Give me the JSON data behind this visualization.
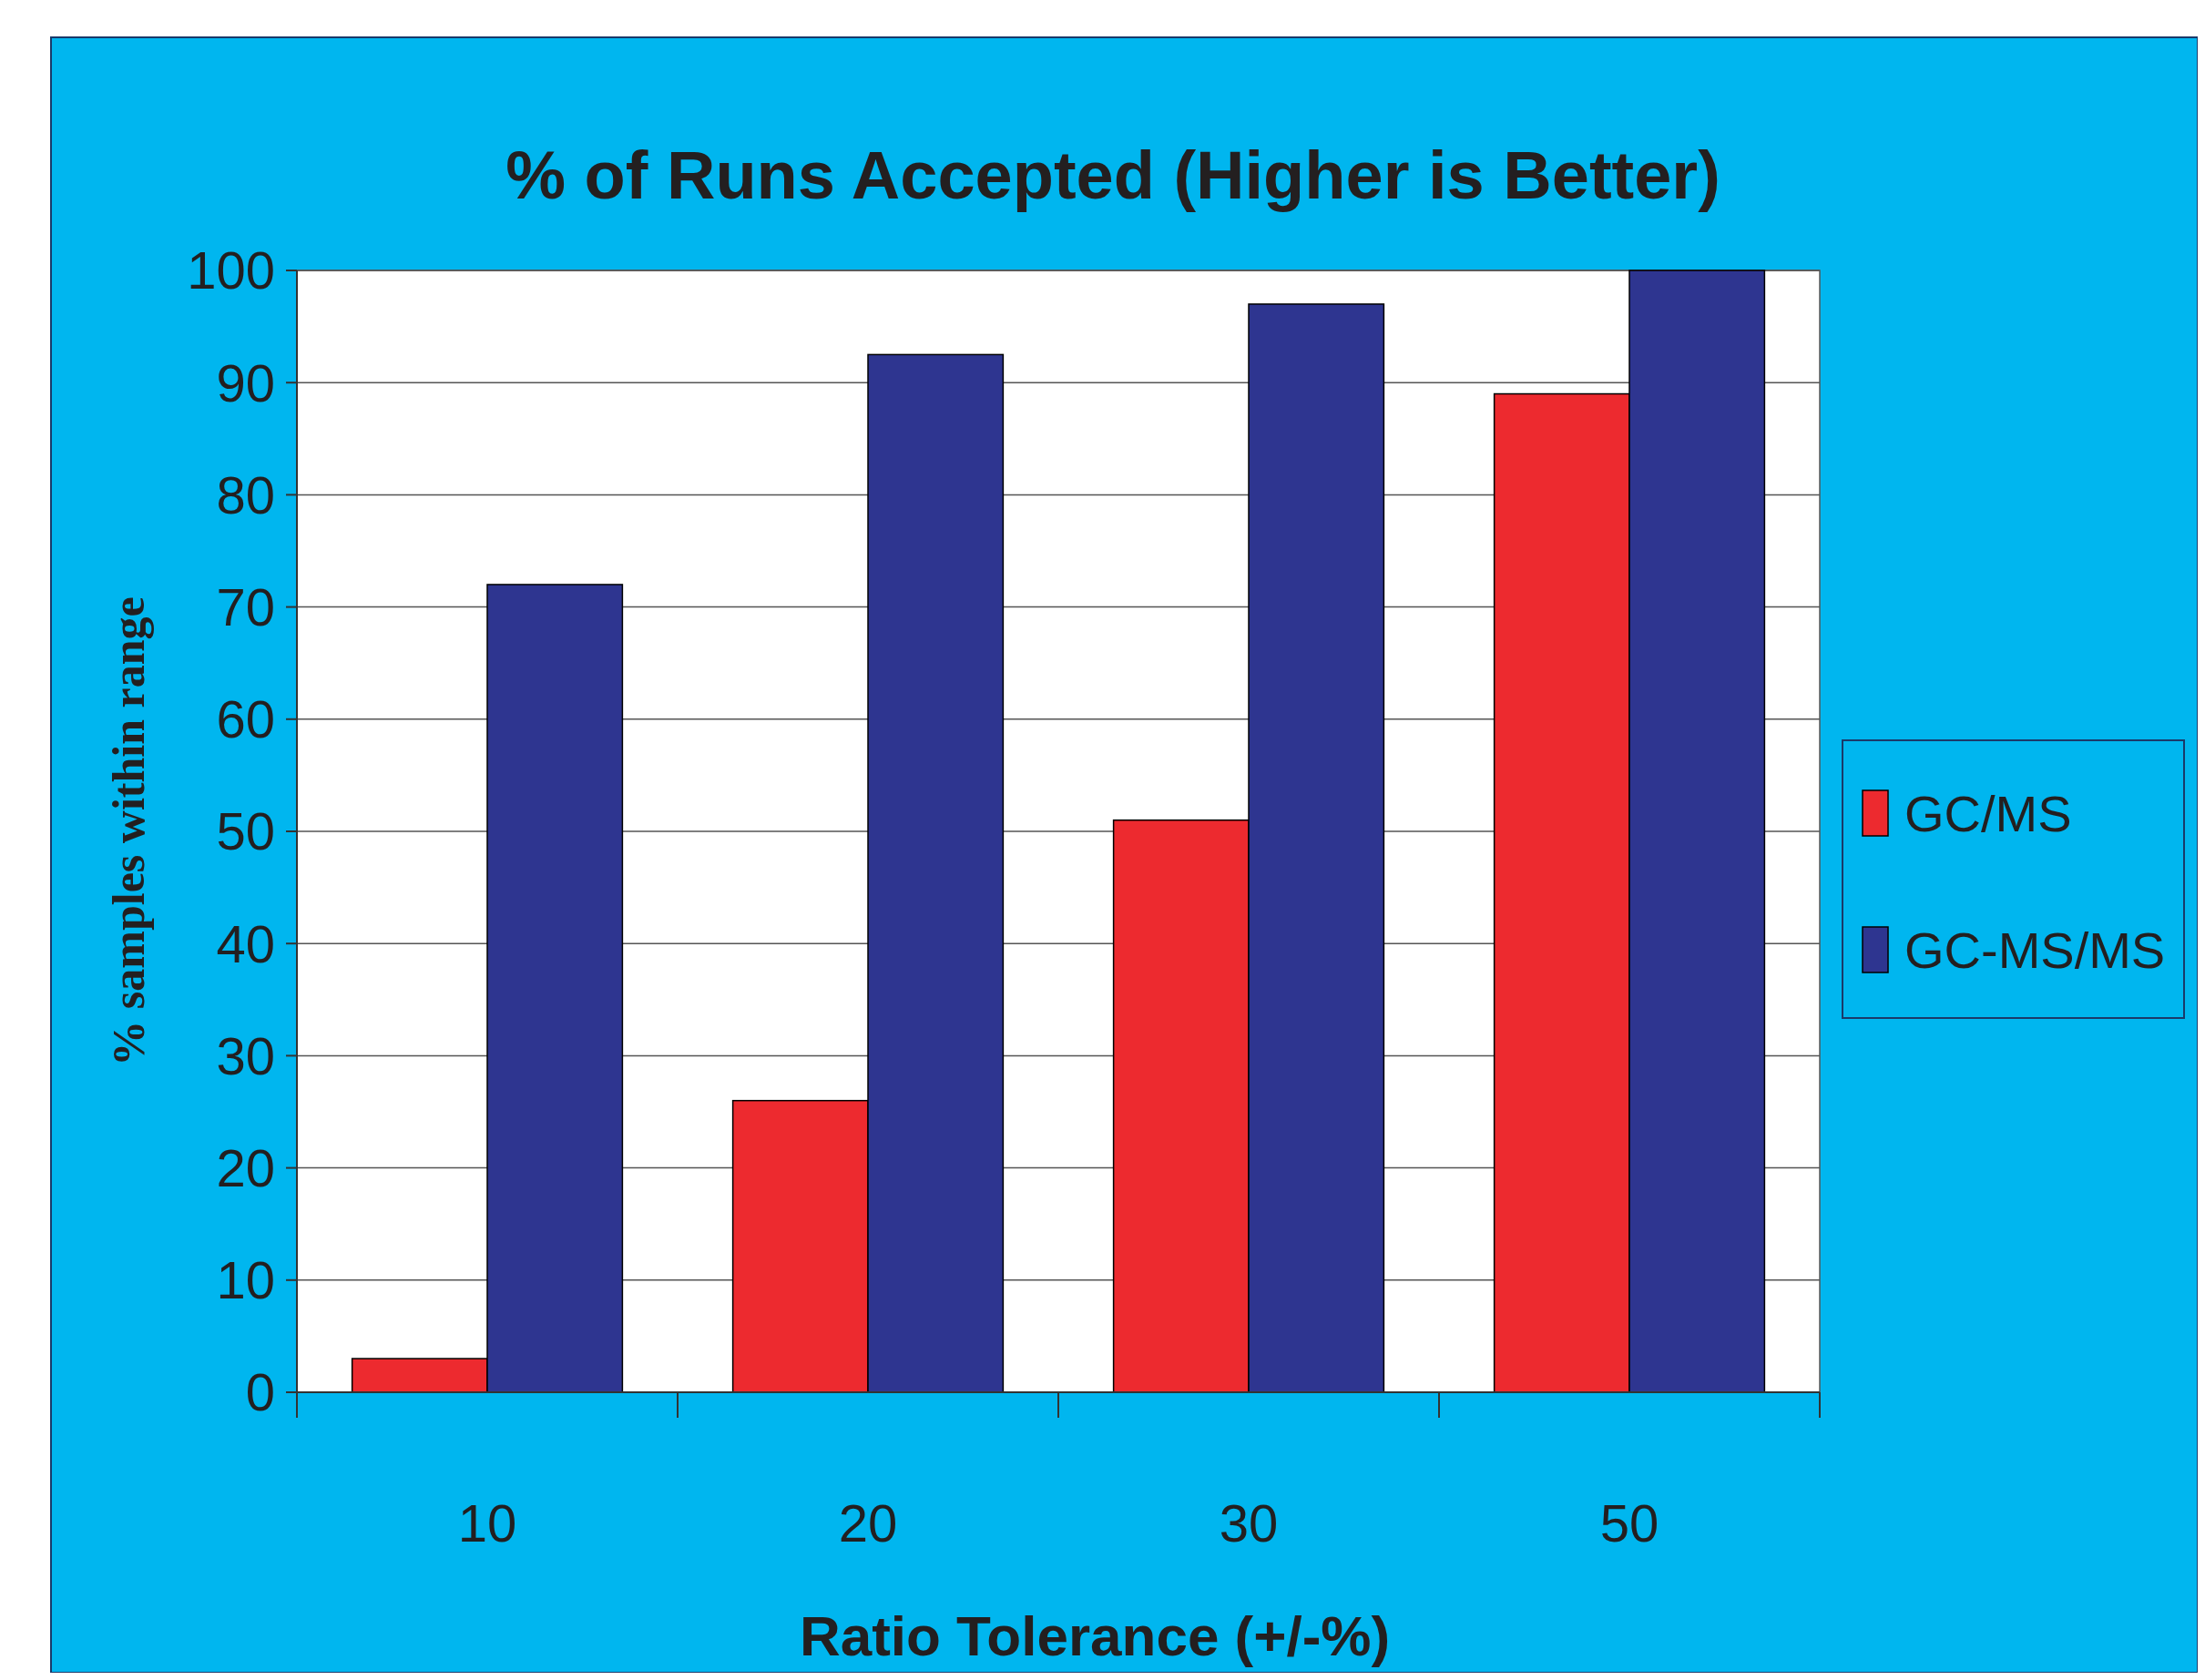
{
  "chart_data": {
    "type": "bar",
    "title": "% of Runs Accepted (Higher is Better)",
    "xlabel": "Ratio Tolerance (+/-%)",
    "ylabel": "% samples within range",
    "categories": [
      "10",
      "20",
      "30",
      "50"
    ],
    "series": [
      {
        "name": "GC/MS",
        "color": "#ed2a2f",
        "values": [
          3,
          26,
          51,
          89
        ]
      },
      {
        "name": "GC-MS/MS",
        "color": "#2e3590",
        "values": [
          72,
          92.5,
          97,
          100
        ]
      }
    ],
    "ylim": [
      0,
      100
    ],
    "yticks": [
      0,
      10,
      20,
      30,
      40,
      50,
      60,
      70,
      80,
      90,
      100
    ],
    "grid": "y",
    "legend": "right"
  }
}
